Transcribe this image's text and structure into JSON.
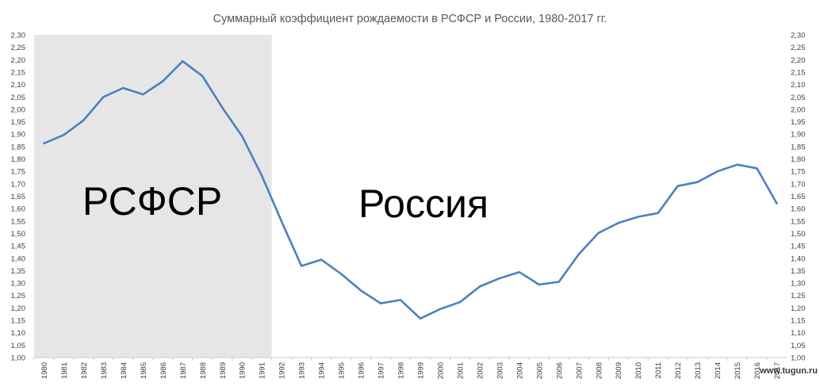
{
  "chart_data": {
    "type": "line",
    "title": "Суммарный коэффициент рождаемости в РСФСР и России, 1980-2017 гг.",
    "xlabel": "",
    "ylabel": "",
    "ylim": [
      1.0,
      2.3
    ],
    "y_ticks": [
      "1,00",
      "1,05",
      "1,10",
      "1,15",
      "1,20",
      "1,25",
      "1,30",
      "1,35",
      "1,40",
      "1,45",
      "1,50",
      "1,55",
      "1,60",
      "1,65",
      "1,70",
      "1,75",
      "1,80",
      "1,85",
      "1,90",
      "1,95",
      "2,00",
      "2,05",
      "2,10",
      "2,15",
      "2,20",
      "2,25",
      "2,30"
    ],
    "secondary_y_axis": true,
    "grid": false,
    "x": [
      "1980",
      "1981",
      "1982",
      "1983",
      "1984",
      "1985",
      "1986",
      "1987",
      "1988",
      "1989",
      "1990",
      "1991",
      "1992",
      "1993",
      "1994",
      "1995",
      "1996",
      "1997",
      "1998",
      "1999",
      "2000",
      "2001",
      "2002",
      "2003",
      "2004",
      "2005",
      "2006",
      "2007",
      "2008",
      "2009",
      "2010",
      "2011",
      "2012",
      "2013",
      "2014",
      "2015",
      "2016",
      "2017"
    ],
    "series": [
      {
        "name": "",
        "color": "#4f7fbf",
        "values": [
          1.863,
          1.897,
          1.956,
          2.05,
          2.086,
          2.06,
          2.113,
          2.194,
          2.134,
          2.007,
          1.892,
          1.732,
          1.547,
          1.369,
          1.394,
          1.337,
          1.27,
          1.218,
          1.232,
          1.157,
          1.195,
          1.223,
          1.286,
          1.319,
          1.344,
          1.294,
          1.305,
          1.416,
          1.502,
          1.542,
          1.567,
          1.582,
          1.691,
          1.707,
          1.75,
          1.777,
          1.762,
          1.621
        ]
      }
    ],
    "shaded_region": {
      "from": "1980",
      "to": "1991",
      "label": "РСФСР",
      "color": "#e6e6e6"
    },
    "region_labels": [
      "РСФСР",
      "Россия"
    ]
  },
  "watermark": "www.tugun.ru"
}
